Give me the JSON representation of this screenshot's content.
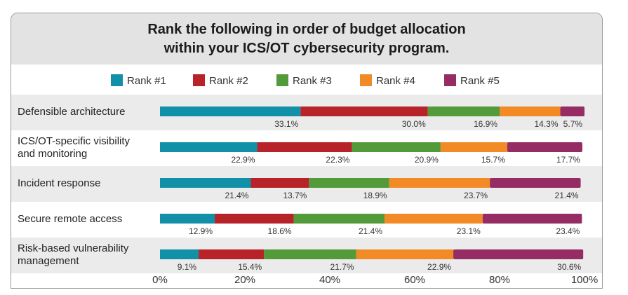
{
  "chart_data": {
    "type": "bar",
    "orientation": "horizontal",
    "stacked": true,
    "title": "Rank the following in order of budget allocation\nwithin your ICS/OT cybersecurity program.",
    "categories": [
      [
        "Defensible architecture"
      ],
      [
        "ICS/OT-specific visibility",
        "and monitoring"
      ],
      [
        "Incident response"
      ],
      [
        "Secure remote access"
      ],
      [
        "Risk-based vulnerability",
        "management"
      ]
    ],
    "series": [
      {
        "name": "Rank #1",
        "color": "#1190a8",
        "values": [
          33.1,
          22.9,
          21.4,
          12.9,
          9.1
        ]
      },
      {
        "name": "Rank #2",
        "color": "#b8232a",
        "values": [
          30.0,
          22.3,
          13.7,
          18.6,
          15.4
        ]
      },
      {
        "name": "Rank #3",
        "color": "#539b3a",
        "values": [
          16.9,
          20.9,
          18.9,
          21.4,
          21.7
        ]
      },
      {
        "name": "Rank #4",
        "color": "#f28b25",
        "values": [
          14.3,
          15.7,
          23.7,
          23.1,
          22.9
        ]
      },
      {
        "name": "Rank #5",
        "color": "#952d64",
        "values": [
          5.7,
          17.7,
          21.4,
          23.4,
          30.6
        ]
      }
    ],
    "xlim": [
      0,
      100
    ],
    "xticks": [
      "0%",
      "20%",
      "40%",
      "60%",
      "80%",
      "100%"
    ],
    "value_suffix": "%",
    "legend_position": "top",
    "stripe_color": "#ebebeb"
  }
}
